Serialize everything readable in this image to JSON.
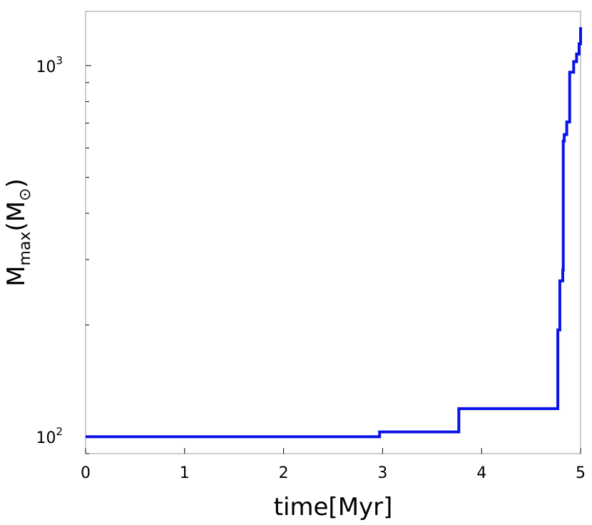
{
  "chart_data": {
    "type": "line",
    "title": "",
    "xlabel": "time[Myr]",
    "ylabel_main": "M",
    "ylabel_sub": "max",
    "ylabel_unit_open": "(M",
    "ylabel_unit_sub": "⊙",
    "ylabel_unit_close": ")",
    "xlim": [
      0,
      5
    ],
    "ylim": [
      90,
      1400
    ],
    "yscale": "log",
    "grid": false,
    "legend": "none",
    "x_ticks": [
      "0",
      "1",
      "2",
      "3",
      "4",
      "5"
    ],
    "y_ticks": [
      {
        "base": "10",
        "exp": "2",
        "value": 100
      },
      {
        "base": "10",
        "exp": "3",
        "value": 1000
      }
    ],
    "line_color": "#0a14e6",
    "series": [
      {
        "step": "post",
        "x": [
          0,
          2.97,
          2.97,
          3.77,
          3.77,
          4.77,
          4.77,
          4.79,
          4.79,
          4.82,
          4.82,
          4.825,
          4.825,
          4.835,
          4.835,
          4.86,
          4.86,
          4.89,
          4.89,
          4.93,
          4.93,
          4.96,
          4.96,
          4.985,
          4.985,
          5.0
        ],
        "y": [
          100,
          103,
          103,
          119,
          119,
          194,
          194,
          263,
          263,
          281,
          281,
          626,
          626,
          652,
          652,
          705,
          705,
          960,
          960,
          1025,
          1025,
          1075,
          1075,
          1145,
          1145,
          1270
        ]
      }
    ]
  }
}
